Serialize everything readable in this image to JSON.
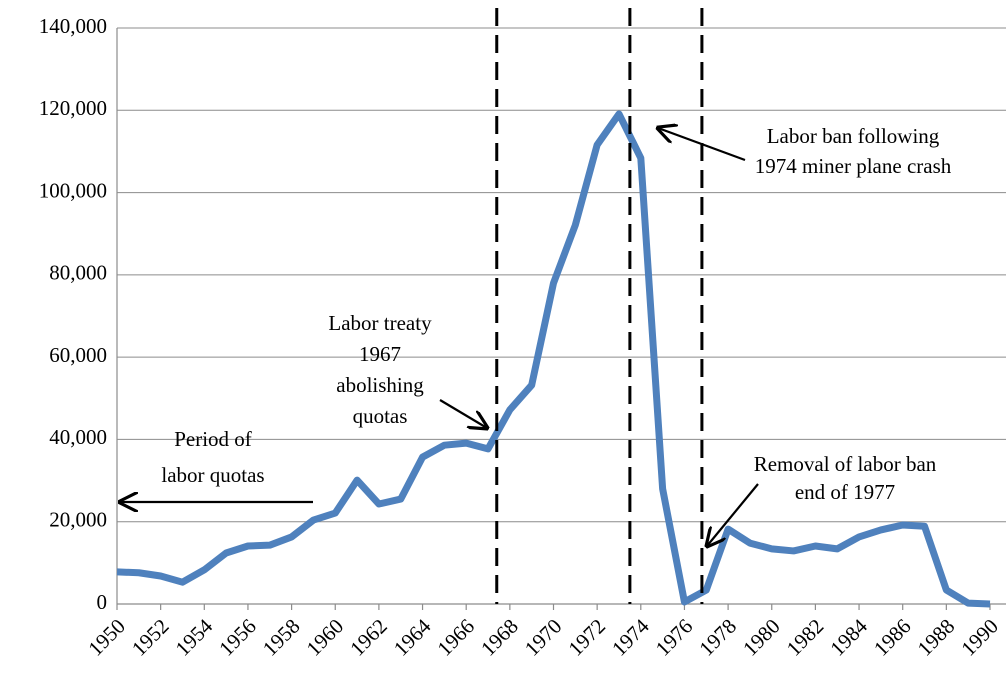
{
  "chart_data": {
    "type": "line",
    "x": [
      1950,
      1951,
      1952,
      1953,
      1954,
      1955,
      1956,
      1957,
      1958,
      1959,
      1960,
      1961,
      1962,
      1963,
      1964,
      1965,
      1966,
      1967,
      1968,
      1969,
      1970,
      1971,
      1972,
      1973,
      1974,
      1975,
      1976,
      1977,
      1978,
      1979,
      1980,
      1981,
      1982,
      1983,
      1984,
      1985,
      1986,
      1987,
      1988,
      1989,
      1990
    ],
    "series": [
      {
        "color": "#4f81bd",
        "values": [
          7800,
          7600,
          6800,
          5300,
          8300,
          12400,
          14100,
          14300,
          16300,
          20400,
          22100,
          30100,
          24300,
          25500,
          35700,
          38600,
          39100,
          37700,
          47200,
          53200,
          78000,
          92100,
          111600,
          119100,
          108400,
          28000,
          500,
          3400,
          18200,
          14800,
          13400,
          12900,
          14100,
          13400,
          16300,
          18000,
          19200,
          18900,
          3400,
          200,
          0
        ]
      }
    ],
    "xlim": [
      1950,
      1990
    ],
    "xticks": [
      1950,
      1952,
      1954,
      1956,
      1958,
      1960,
      1962,
      1964,
      1966,
      1968,
      1970,
      1972,
      1974,
      1976,
      1978,
      1980,
      1982,
      1984,
      1986,
      1988,
      1990
    ],
    "ylim": [
      0,
      140000
    ],
    "yticks": [
      0,
      {
        "value": 20000,
        "label": "20,000"
      },
      {
        "value": 40000,
        "label": "40,000"
      },
      {
        "value": 60000,
        "label": "60,000"
      },
      {
        "value": 80000,
        "label": "80,000"
      },
      {
        "value": 100000,
        "label": "100,000"
      },
      {
        "value": 120000,
        "label": "120,000"
      },
      {
        "value": 140000,
        "label": "140,000"
      }
    ],
    "grid": true,
    "reference_lines": [
      1967.4,
      1973.5,
      1976.8
    ],
    "reference_line_style": "dashed",
    "annotations": [
      {
        "lines": [
          "Period of",
          "labor quotas"
        ]
      },
      {
        "lines": [
          "Labor treaty",
          "1967",
          "abolishing",
          "quotas"
        ]
      },
      {
        "lines": [
          "Labor ban following",
          "1974 miner plane crash"
        ]
      },
      {
        "lines": [
          "Removal of labor ban",
          "end of 1977"
        ]
      }
    ]
  }
}
